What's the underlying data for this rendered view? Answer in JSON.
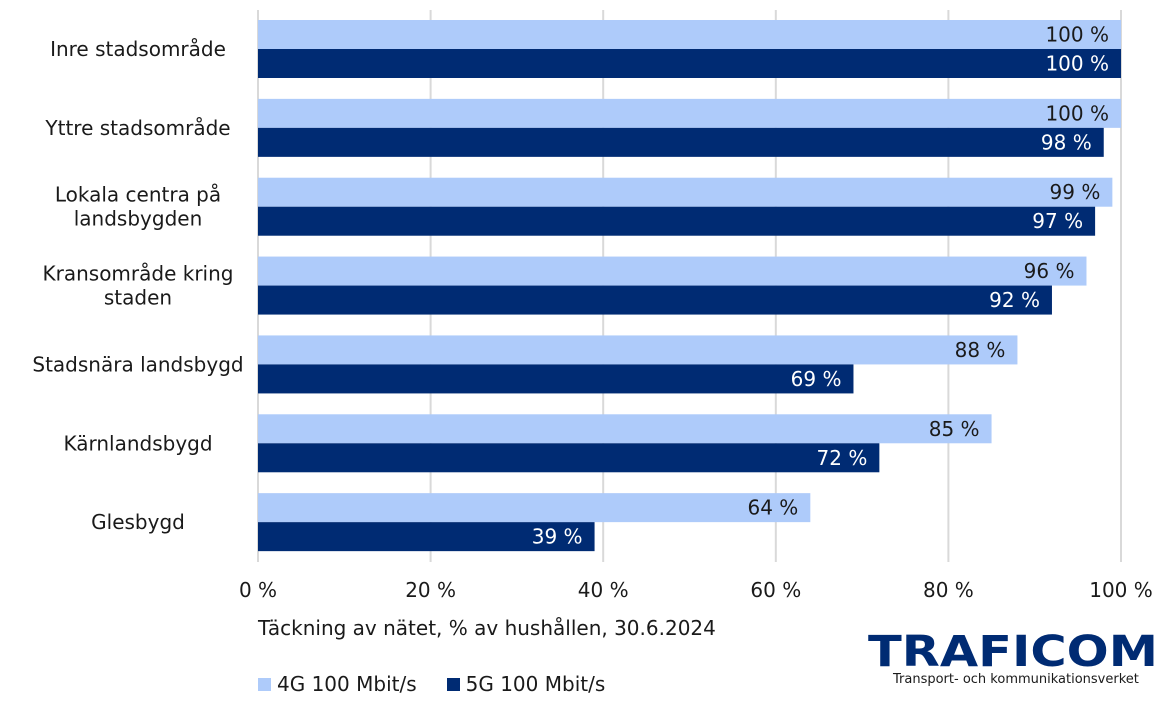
{
  "chart_data": {
    "type": "bar",
    "orientation": "horizontal",
    "categories": [
      [
        "Inre stadsområde"
      ],
      [
        "Yttre stadsområde"
      ],
      [
        "Lokala centra på",
        "landsbygden"
      ],
      [
        "Kransområde kring",
        "staden"
      ],
      [
        "Stadsnära landsbygd"
      ],
      [
        "Kärnlandsbygd"
      ],
      [
        "Glesbygd"
      ]
    ],
    "series": [
      {
        "name": "4G 100 Mbit/s",
        "color": "#aecbfa",
        "label_color": "#1a1a1a",
        "values": [
          100,
          100,
          99,
          96,
          88,
          85,
          64
        ]
      },
      {
        "name": "5G 100 Mbit/s",
        "color": "#002b73",
        "label_color": "#ffffff",
        "values": [
          100,
          98,
          97,
          92,
          69,
          72,
          39
        ]
      }
    ],
    "value_suffix": " %",
    "xlim": [
      0,
      100
    ],
    "xticks": [
      0,
      20,
      40,
      60,
      80,
      100
    ],
    "xtick_labels": [
      "0 %",
      "20 %",
      "40 %",
      "60 %",
      "80 %",
      "100 %"
    ],
    "xlabel": "Täckning av nätet, % av hushållen, 30.6.2024",
    "grid": true,
    "legend_position": "bottom-left"
  },
  "logo": {
    "letters": "TRAFICOM",
    "tagline": "Transport- och kommunikationsverket",
    "color": "#002b73"
  }
}
